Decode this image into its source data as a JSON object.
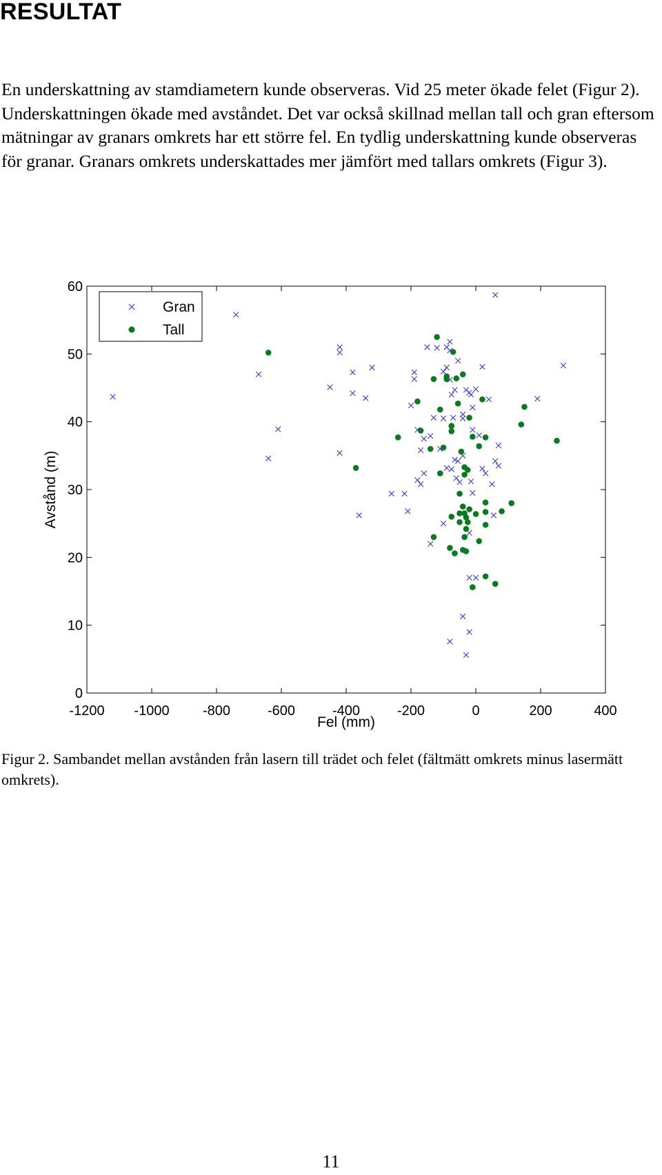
{
  "heading": "RESULTAT",
  "paragraph": "En underskattning av stamdiametern kunde observeras. Vid 25 meter ökade felet (Figur 2). Underskattningen ökade med avståndet. Det var också skillnad mellan tall och gran eftersom mätningar av granars omkrets har ett större fel. En tydlig underskattning kunde observeras för granar. Granars omkrets underskattades mer jämfört med tallars omkrets (Figur 3).",
  "caption": "Figur 2. Sambandet mellan avstånden från lasern till trädet och felet (fältmätt omkrets minus lasermätt omkrets).",
  "page_number": "11",
  "chart_data": {
    "type": "scatter",
    "xlabel": "Fel (mm)",
    "ylabel": "Avstånd (m)",
    "xlim": [
      -1200,
      400
    ],
    "ylim": [
      0,
      60
    ],
    "xticks": [
      -1200,
      -1000,
      -800,
      -600,
      -400,
      -200,
      0,
      200,
      400
    ],
    "yticks": [
      0,
      10,
      20,
      30,
      40,
      50,
      60
    ],
    "grid": false,
    "legend": "top-left",
    "colors": {
      "Gran": "#3b3bd6",
      "Tall": "#0a7a1e"
    },
    "series": [
      {
        "name": "Gran",
        "marker": "x",
        "points": [
          [
            -1120,
            43.7
          ],
          [
            -740,
            55.8
          ],
          [
            -670,
            47.0
          ],
          [
            -640,
            34.6
          ],
          [
            -610,
            38.9
          ],
          [
            -420,
            51.0
          ],
          [
            -420,
            50.2
          ],
          [
            -420,
            35.4
          ],
          [
            -450,
            45.1
          ],
          [
            -380,
            47.3
          ],
          [
            -380,
            44.2
          ],
          [
            -360,
            26.2
          ],
          [
            -340,
            43.5
          ],
          [
            -320,
            48.0
          ],
          [
            -260,
            29.4
          ],
          [
            -220,
            29.4
          ],
          [
            -210,
            26.8
          ],
          [
            -200,
            42.4
          ],
          [
            -190,
            47.3
          ],
          [
            -190,
            46.3
          ],
          [
            -180,
            38.8
          ],
          [
            -180,
            31.4
          ],
          [
            -170,
            30.8
          ],
          [
            -170,
            35.8
          ],
          [
            -160,
            37.5
          ],
          [
            -160,
            32.4
          ],
          [
            -150,
            51.0
          ],
          [
            -140,
            37.9
          ],
          [
            -140,
            22.0
          ],
          [
            -130,
            40.6
          ],
          [
            -120,
            50.9
          ],
          [
            -110,
            36.0
          ],
          [
            -100,
            25.0
          ],
          [
            -100,
            40.5
          ],
          [
            -100,
            47.4
          ],
          [
            -90,
            33.2
          ],
          [
            -90,
            48.0
          ],
          [
            -90,
            51.0
          ],
          [
            -80,
            51.8
          ],
          [
            -80,
            50.5
          ],
          [
            -80,
            46.2
          ],
          [
            -75,
            44.0
          ],
          [
            -75,
            33.0
          ],
          [
            -70,
            40.6
          ],
          [
            -65,
            44.7
          ],
          [
            -65,
            34.4
          ],
          [
            -60,
            31.7
          ],
          [
            -55,
            49.0
          ],
          [
            -55,
            34.2
          ],
          [
            -50,
            31.1
          ],
          [
            -40,
            41.1
          ],
          [
            -40,
            40.5
          ],
          [
            -40,
            35.0
          ],
          [
            -30,
            44.7
          ],
          [
            -20,
            44.3
          ],
          [
            -15,
            31.2
          ],
          [
            -15,
            44.0
          ],
          [
            -10,
            29.5
          ],
          [
            -10,
            42.1
          ],
          [
            -10,
            38.8
          ],
          [
            0,
            44.8
          ],
          [
            10,
            38.0
          ],
          [
            20,
            33.1
          ],
          [
            20,
            48.1
          ],
          [
            30,
            32.4
          ],
          [
            40,
            43.3
          ],
          [
            50,
            30.8
          ],
          [
            55,
            26.2
          ],
          [
            60,
            34.2
          ],
          [
            60,
            58.7
          ],
          [
            70,
            33.5
          ],
          [
            70,
            36.5
          ],
          [
            190,
            43.4
          ],
          [
            270,
            48.3
          ],
          [
            -20,
            23.6
          ],
          [
            -20,
            17.0
          ],
          [
            0,
            17.0
          ],
          [
            -40,
            11.3
          ],
          [
            -80,
            7.6
          ],
          [
            -20,
            9.0
          ],
          [
            -30,
            5.6
          ]
        ]
      },
      {
        "name": "Tall",
        "marker": "o",
        "points": [
          [
            -640,
            50.2
          ],
          [
            -370,
            33.2
          ],
          [
            -240,
            37.7
          ],
          [
            -180,
            43.0
          ],
          [
            -170,
            38.7
          ],
          [
            -140,
            36.0
          ],
          [
            -130,
            46.3
          ],
          [
            -130,
            23.0
          ],
          [
            -120,
            52.5
          ],
          [
            -110,
            41.8
          ],
          [
            -110,
            32.4
          ],
          [
            -100,
            36.2
          ],
          [
            -90,
            46.7
          ],
          [
            -90,
            46.3
          ],
          [
            -80,
            21.4
          ],
          [
            -75,
            39.4
          ],
          [
            -75,
            38.6
          ],
          [
            -75,
            26.0
          ],
          [
            -70,
            50.3
          ],
          [
            -65,
            20.6
          ],
          [
            -60,
            46.4
          ],
          [
            -55,
            42.7
          ],
          [
            -50,
            26.5
          ],
          [
            -50,
            25.2
          ],
          [
            -50,
            29.4
          ],
          [
            -45,
            35.6
          ],
          [
            -40,
            47.0
          ],
          [
            -40,
            27.5
          ],
          [
            -40,
            21.1
          ],
          [
            -35,
            33.3
          ],
          [
            -35,
            32.2
          ],
          [
            -35,
            26.5
          ],
          [
            -35,
            23.0
          ],
          [
            -30,
            25.9
          ],
          [
            -30,
            24.2
          ],
          [
            -25,
            32.9
          ],
          [
            -25,
            25.2
          ],
          [
            -20,
            40.6
          ],
          [
            -20,
            27.1
          ],
          [
            -10,
            37.8
          ],
          [
            0,
            26.4
          ],
          [
            10,
            36.4
          ],
          [
            10,
            22.4
          ],
          [
            20,
            43.3
          ],
          [
            30,
            37.7
          ],
          [
            30,
            28.1
          ],
          [
            30,
            26.7
          ],
          [
            30,
            24.8
          ],
          [
            30,
            17.2
          ],
          [
            60,
            16.1
          ],
          [
            -10,
            15.6
          ],
          [
            80,
            26.8
          ],
          [
            110,
            28.0
          ],
          [
            140,
            39.6
          ],
          [
            150,
            42.2
          ],
          [
            250,
            37.2
          ],
          [
            -30,
            20.9
          ]
        ]
      }
    ]
  }
}
